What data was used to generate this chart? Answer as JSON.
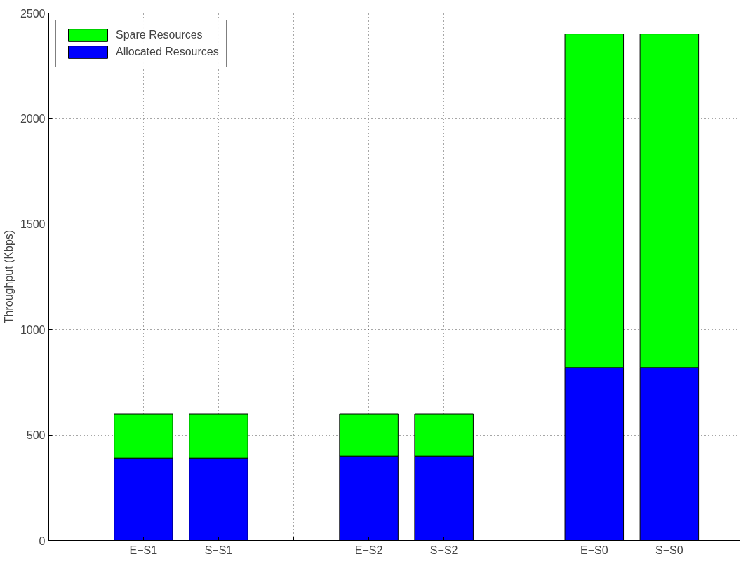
{
  "chart_data": {
    "type": "bar",
    "stacked": true,
    "ylabel": "Throughput (Kbps)",
    "categories": [
      "E−S1",
      "S−S1",
      null,
      "E−S2",
      "S−S2",
      null,
      "E−S0",
      "S−S0"
    ],
    "series": [
      {
        "name": "Allocated Resources",
        "color": "#0000ff",
        "values": [
          390,
          390,
          null,
          400,
          400,
          null,
          820,
          820
        ]
      },
      {
        "name": "Spare Resources",
        "color": "#00ff00",
        "values": [
          210,
          210,
          null,
          200,
          200,
          null,
          1580,
          1580
        ]
      }
    ],
    "ylim": [
      0,
      2500
    ],
    "yticks": [
      0,
      500,
      1000,
      1500,
      2000,
      2500
    ],
    "grid": true,
    "legend": "top left"
  }
}
